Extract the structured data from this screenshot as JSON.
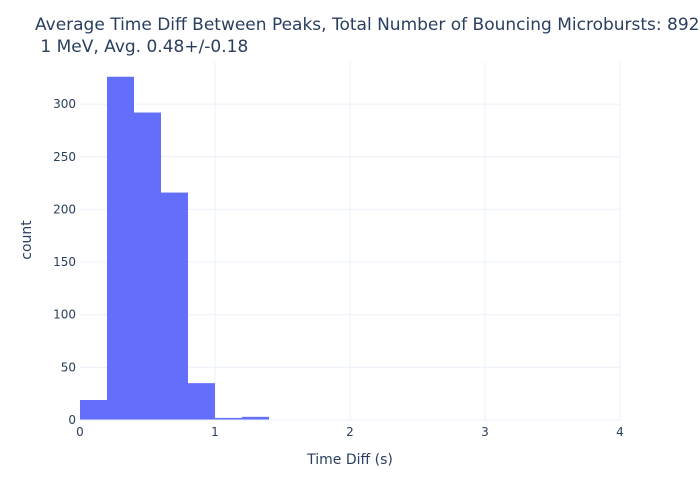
{
  "chart_data": {
    "type": "bar",
    "title_line1": "Average Time Diff Between Peaks, Total Number of Bouncing Microbursts: 892,",
    "title_line2": " 1 MeV, Avg. 0.48+/-0.18",
    "xlabel": "Time Diff (s)",
    "ylabel": "count",
    "xlim": [
      0,
      4
    ],
    "ylim": [
      0,
      340
    ],
    "xticks": [
      0,
      1,
      2,
      3,
      4
    ],
    "xtick_labels": [
      "0",
      "1",
      "2",
      "3",
      "4"
    ],
    "yticks": [
      0,
      50,
      100,
      150,
      200,
      250,
      300
    ],
    "ytick_labels": [
      "0",
      "50",
      "100",
      "150",
      "200",
      "250",
      "300"
    ],
    "grid": true,
    "bar_color": "#636efa",
    "bins": [
      {
        "x0": 0.0,
        "x1": 0.2,
        "count": 19
      },
      {
        "x0": 0.2,
        "x1": 0.4,
        "count": 326
      },
      {
        "x0": 0.4,
        "x1": 0.6,
        "count": 292
      },
      {
        "x0": 0.6,
        "x1": 0.8,
        "count": 216
      },
      {
        "x0": 0.8,
        "x1": 1.0,
        "count": 35
      },
      {
        "x0": 1.0,
        "x1": 1.2,
        "count": 2
      },
      {
        "x0": 1.2,
        "x1": 1.4,
        "count": 3
      }
    ]
  }
}
